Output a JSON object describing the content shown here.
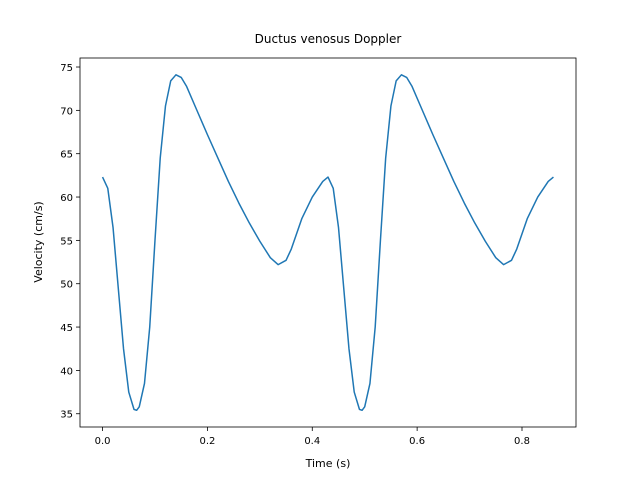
{
  "chart_data": {
    "type": "line",
    "title": "Ductus venosus Doppler",
    "xlabel": "Time (s)",
    "ylabel": "Velocity (cm/s)",
    "x": [
      0.0,
      0.01,
      0.02,
      0.03,
      0.04,
      0.05,
      0.06,
      0.065,
      0.07,
      0.08,
      0.09,
      0.1,
      0.11,
      0.12,
      0.13,
      0.14,
      0.15,
      0.16,
      0.18,
      0.2,
      0.22,
      0.24,
      0.26,
      0.28,
      0.3,
      0.32,
      0.335,
      0.35,
      0.36,
      0.38,
      0.4,
      0.42,
      0.43,
      0.44,
      0.45,
      0.46,
      0.47,
      0.48,
      0.49,
      0.495,
      0.5,
      0.51,
      0.52,
      0.53,
      0.54,
      0.55,
      0.56,
      0.57,
      0.58,
      0.59,
      0.61,
      0.63,
      0.65,
      0.67,
      0.69,
      0.71,
      0.73,
      0.75,
      0.765,
      0.78,
      0.79,
      0.81,
      0.83,
      0.85,
      0.86
    ],
    "series": [
      {
        "name": "Velocity",
        "color": "#1f77b4",
        "values": [
          62.3,
          61.0,
          56.5,
          49.5,
          42.5,
          37.5,
          35.5,
          35.4,
          35.8,
          38.5,
          45.0,
          55.0,
          64.5,
          70.5,
          73.4,
          74.1,
          73.8,
          72.8,
          70.0,
          67.2,
          64.5,
          61.8,
          59.3,
          57.0,
          54.9,
          53.0,
          52.2,
          52.7,
          54.0,
          57.5,
          60.0,
          61.8,
          62.3,
          61.0,
          56.5,
          49.5,
          42.5,
          37.5,
          35.5,
          35.4,
          35.8,
          38.5,
          45.0,
          55.0,
          64.5,
          70.5,
          73.4,
          74.1,
          73.8,
          72.8,
          70.0,
          67.2,
          64.5,
          61.8,
          59.3,
          57.0,
          54.9,
          53.0,
          52.2,
          52.7,
          54.0,
          57.5,
          60.0,
          61.8,
          62.3
        ]
      }
    ],
    "xlim": [
      -0.043,
      0.903
    ],
    "ylim": [
      33.47,
      76.04
    ],
    "xticks": [
      {
        "value": 0,
        "label": "0.0"
      },
      0.2,
      0.4,
      0.6,
      0.8
    ],
    "yticks": [
      35,
      40,
      45,
      50,
      55,
      60,
      65,
      70,
      75
    ]
  }
}
